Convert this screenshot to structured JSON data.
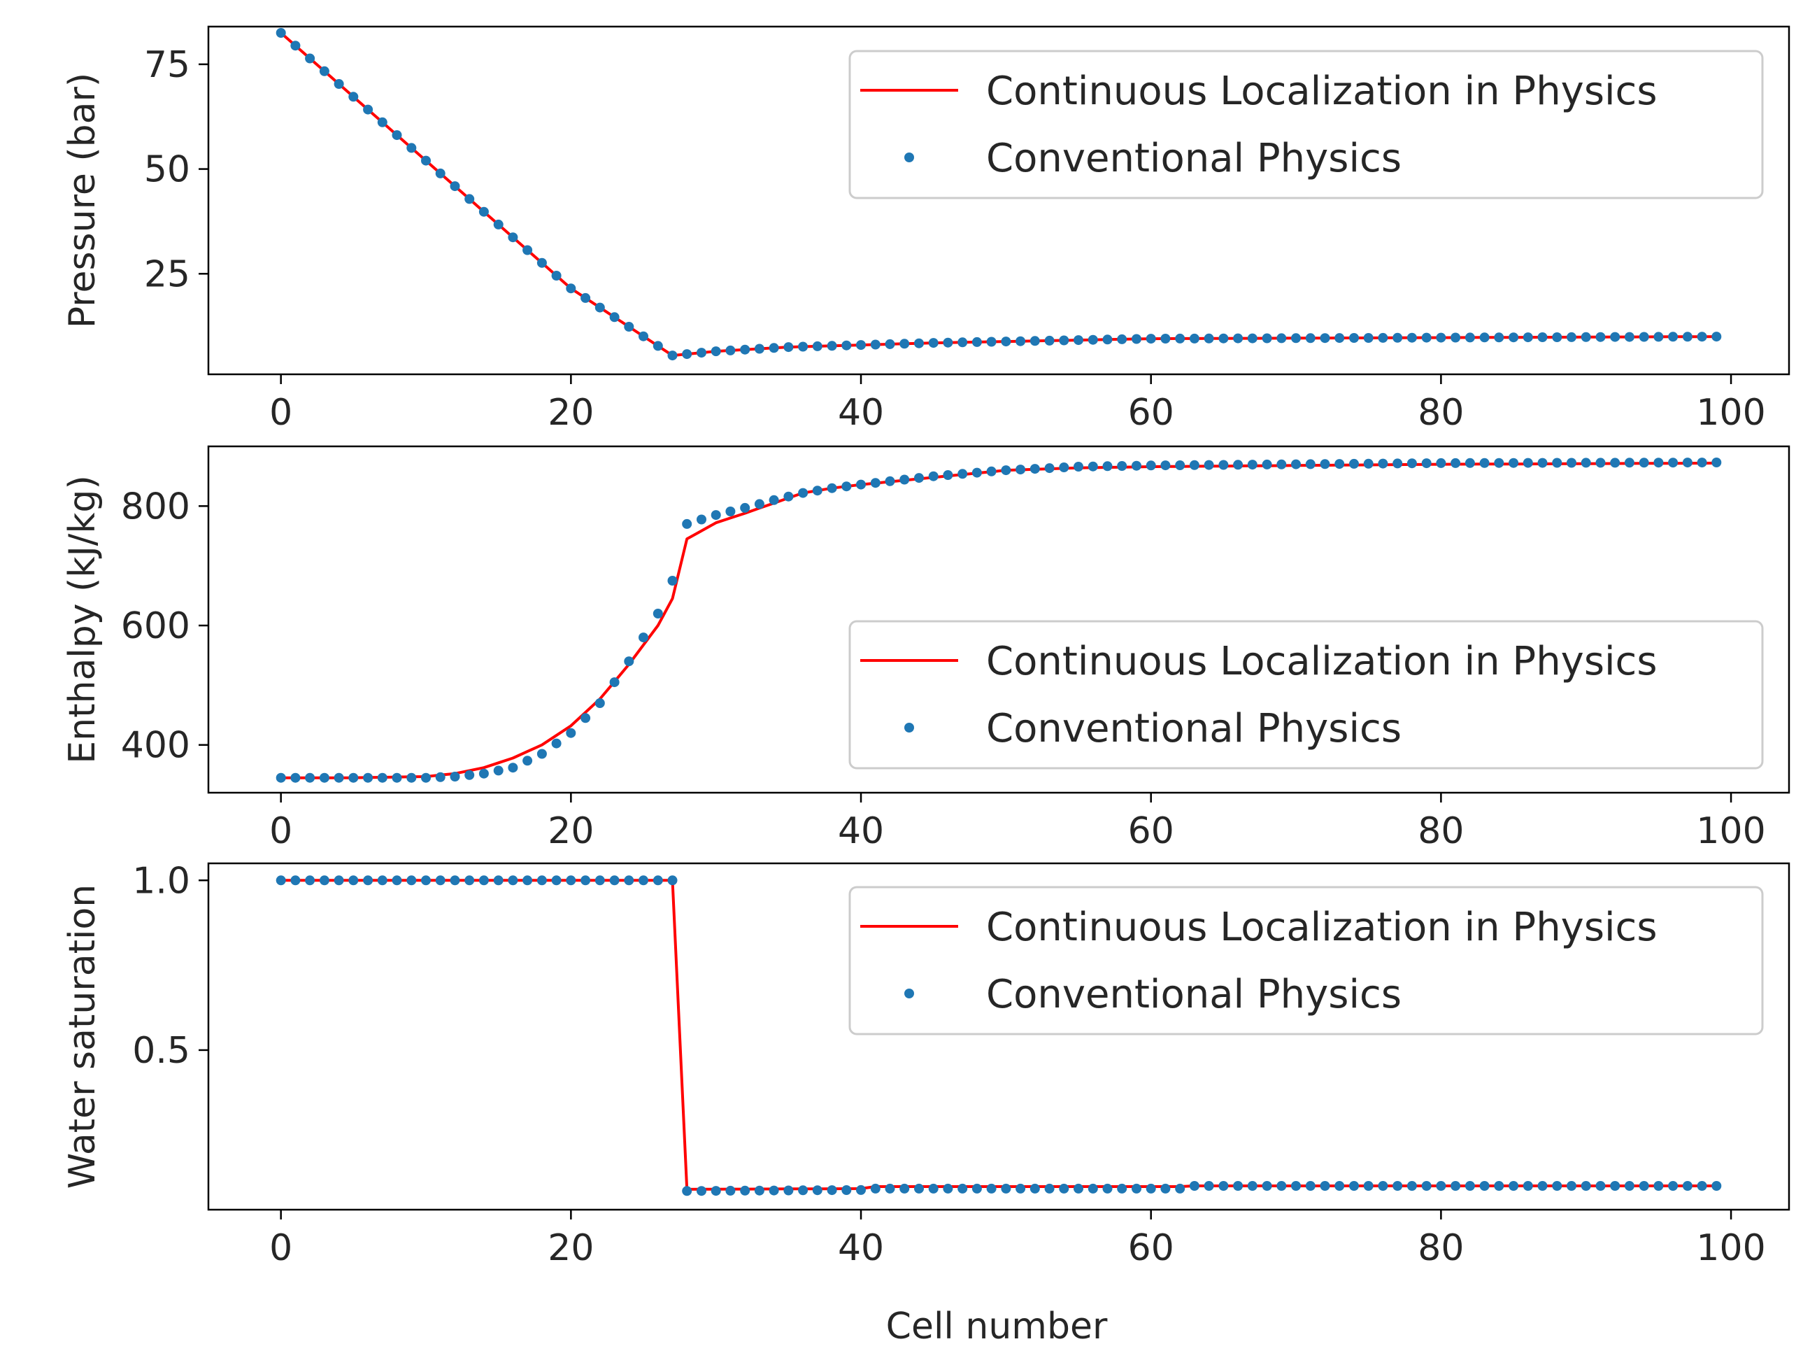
{
  "figure": {
    "xlabel": "Cell number",
    "colors": {
      "line": "#ff0000",
      "marker": "#1f77b4",
      "axis": "#000000",
      "legend_border": "#cccccc"
    }
  },
  "chart_data": [
    {
      "type": "line",
      "ylabel": "Pressure (bar)",
      "xlim": [
        -5,
        104
      ],
      "ylim": [
        1,
        84
      ],
      "xticks": [
        0,
        20,
        40,
        60,
        80,
        100
      ],
      "yticks": [
        25,
        50,
        75
      ],
      "legend": {
        "placement": "top-right",
        "entries": [
          "Continuous Localization in Physics",
          "Conventional Physics"
        ]
      },
      "series": [
        {
          "name": "Continuous Localization in Physics",
          "style": "line",
          "points": [
            [
              0,
              82.5
            ],
            [
              20,
              21.5
            ],
            [
              27,
              5.5
            ],
            [
              30,
              6.5
            ],
            [
              35,
              7.5
            ],
            [
              45,
              8.5
            ],
            [
              60,
              9.5
            ],
            [
              99,
              10
            ]
          ]
        },
        {
          "name": "Conventional Physics",
          "style": "markers",
          "points": [
            [
              0,
              82.5
            ],
            [
              20,
              21.5
            ],
            [
              27,
              5.5
            ],
            [
              30,
              6.5
            ],
            [
              35,
              7.5
            ],
            [
              45,
              8.5
            ],
            [
              60,
              9.5
            ],
            [
              99,
              10
            ]
          ]
        }
      ]
    },
    {
      "type": "line",
      "ylabel": "Enthalpy (kJ/kg)",
      "xlim": [
        -5,
        104
      ],
      "ylim": [
        320,
        900
      ],
      "xticks": [
        0,
        20,
        40,
        60,
        80,
        100
      ],
      "yticks": [
        400,
        600,
        800
      ],
      "legend": {
        "placement": "lower-right",
        "entries": [
          "Continuous Localization in Physics",
          "Conventional Physics"
        ]
      },
      "series": [
        {
          "name": "Continuous Localization in Physics",
          "style": "line",
          "points": [
            [
              0,
              345
            ],
            [
              5,
              345
            ],
            [
              10,
              347
            ],
            [
              12,
              352
            ],
            [
              14,
              362
            ],
            [
              16,
              378
            ],
            [
              18,
              400
            ],
            [
              20,
              432
            ],
            [
              22,
              477
            ],
            [
              24,
              535
            ],
            [
              26,
              600
            ],
            [
              27,
              645
            ],
            [
              28,
              745
            ],
            [
              30,
              772
            ],
            [
              32,
              788
            ],
            [
              34,
              805
            ],
            [
              36,
              822
            ],
            [
              38,
              830
            ],
            [
              40,
              836
            ],
            [
              45,
              848
            ],
            [
              50,
              860
            ],
            [
              55,
              864
            ],
            [
              60,
              866
            ],
            [
              80,
              870
            ],
            [
              99,
              872
            ]
          ]
        },
        {
          "name": "Conventional Physics",
          "style": "markers",
          "points": [
            [
              0,
              345
            ],
            [
              5,
              345
            ],
            [
              10,
              345
            ],
            [
              12,
              347
            ],
            [
              14,
              352
            ],
            [
              16,
              362
            ],
            [
              18,
              385
            ],
            [
              20,
              420
            ],
            [
              22,
              470
            ],
            [
              24,
              540
            ],
            [
              26,
              620
            ],
            [
              27,
              675
            ],
            [
              28,
              770
            ],
            [
              30,
              785
            ],
            [
              32,
              797
            ],
            [
              34,
              810
            ],
            [
              36,
              822
            ],
            [
              38,
              830
            ],
            [
              40,
              836
            ],
            [
              45,
              850
            ],
            [
              50,
              860
            ],
            [
              55,
              866
            ],
            [
              60,
              868
            ],
            [
              80,
              872
            ],
            [
              99,
              873
            ]
          ]
        }
      ]
    },
    {
      "type": "line",
      "ylabel": "Water saturation",
      "xlim": [
        -5,
        104
      ],
      "ylim": [
        0.03,
        1.05
      ],
      "xticks": [
        0,
        20,
        40,
        60,
        80,
        100
      ],
      "yticks": [
        "0.5",
        "1.0"
      ],
      "legend": {
        "placement": "top-right",
        "entries": [
          "Continuous Localization in Physics",
          "Conventional Physics"
        ]
      },
      "series": [
        {
          "name": "Continuous Localization in Physics",
          "style": "line",
          "points": [
            [
              0,
              1.0
            ],
            [
              27,
              1.0
            ],
            [
              28,
              0.09
            ],
            [
              40,
              0.092
            ],
            [
              41,
              0.098
            ],
            [
              62,
              0.098
            ],
            [
              63,
              0.1
            ],
            [
              99,
              0.1
            ]
          ]
        },
        {
          "name": "Conventional Physics",
          "style": "markers",
          "points": [
            [
              0,
              1.0
            ],
            [
              27,
              1.0
            ],
            [
              28,
              0.085
            ],
            [
              40,
              0.088
            ],
            [
              41,
              0.092
            ],
            [
              62,
              0.092
            ],
            [
              63,
              0.1
            ],
            [
              99,
              0.1
            ]
          ]
        }
      ]
    }
  ]
}
